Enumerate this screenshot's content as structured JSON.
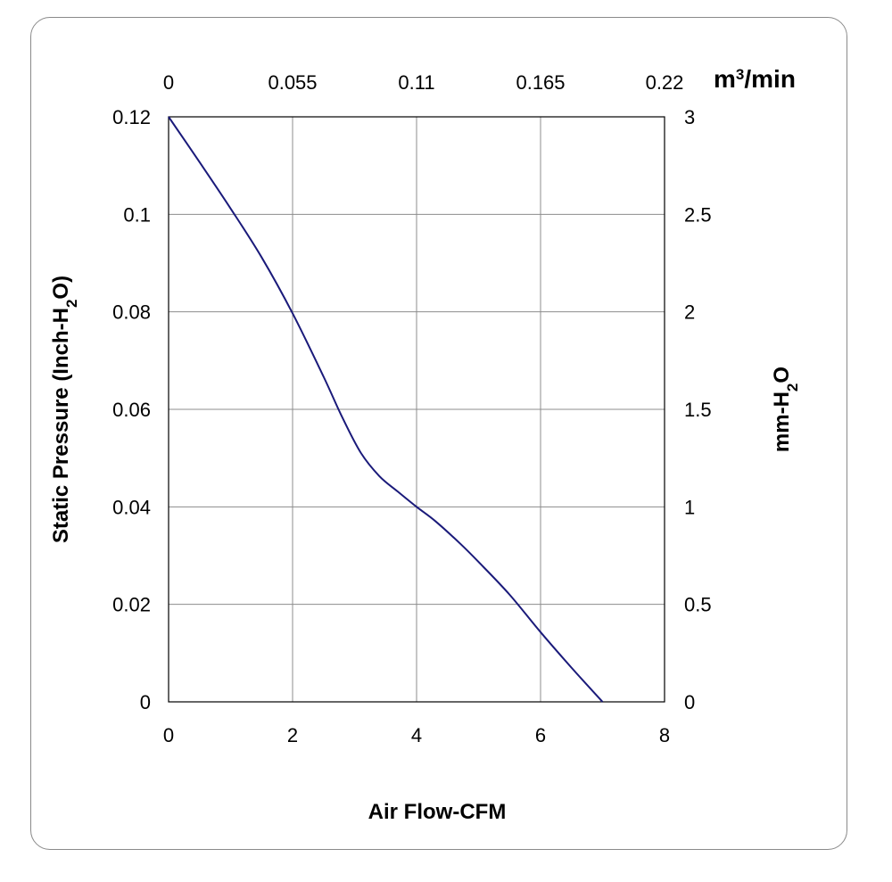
{
  "chart_data": {
    "type": "line",
    "title": "",
    "xlabel": "Air Flow-CFM",
    "ylabel_parts": [
      "Static Pressure (Inch-H",
      "2",
      "O)"
    ],
    "y2label_parts": [
      "mm-H",
      "2",
      "O"
    ],
    "x2label_parts": [
      "m",
      "3",
      "/min"
    ],
    "xlim": [
      0,
      8
    ],
    "ylim": [
      0,
      0.12
    ],
    "x_ticks": [
      "0",
      "2",
      "4",
      "6",
      "8"
    ],
    "x_tick_values": [
      0,
      2,
      4,
      6,
      8
    ],
    "y_ticks": [
      "0",
      "0.02",
      "0.04",
      "0.06",
      "0.08",
      "0.1",
      "0.12"
    ],
    "y_tick_values": [
      0,
      0.02,
      0.04,
      0.06,
      0.08,
      0.1,
      0.12
    ],
    "x2_ticks": [
      "0",
      "0.055",
      "0.11",
      "0.165",
      "0.22"
    ],
    "x2_tick_values": [
      0,
      0.055,
      0.11,
      0.165,
      0.22
    ],
    "x2lim": [
      0,
      0.22
    ],
    "y2_ticks": [
      "0",
      "0.5",
      "1",
      "1.5",
      "2",
      "2.5",
      "3"
    ],
    "y2_tick_values": [
      0,
      0.5,
      1,
      1.5,
      2,
      2.5,
      3
    ],
    "y2lim": [
      0,
      3
    ],
    "grid": true,
    "series": [
      {
        "color": "#1a1a7a",
        "x": [
          0,
          0.5,
          1.0,
          1.5,
          2.0,
          2.5,
          2.8,
          3.1,
          3.4,
          3.7,
          4.0,
          4.3,
          4.7,
          5.0,
          5.5,
          6.0,
          6.5,
          7.0
        ],
        "y": [
          0.12,
          0.1107,
          0.1012,
          0.0912,
          0.0797,
          0.0667,
          0.0584,
          0.0511,
          0.0463,
          0.0431,
          0.04,
          0.0371,
          0.0325,
          0.0287,
          0.022,
          0.0143,
          0.007,
          0.0
        ]
      }
    ]
  }
}
